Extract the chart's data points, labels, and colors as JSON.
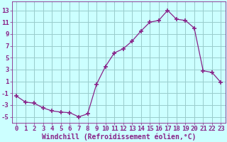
{
  "x": [
    0,
    1,
    2,
    3,
    4,
    5,
    6,
    7,
    8,
    9,
    10,
    11,
    12,
    13,
    14,
    15,
    16,
    17,
    18,
    19,
    20,
    21,
    22,
    23
  ],
  "y": [
    -1.5,
    -2.5,
    -2.7,
    -3.5,
    -4.0,
    -4.2,
    -4.3,
    -5.0,
    -4.5,
    0.5,
    3.5,
    5.8,
    6.5,
    7.8,
    9.5,
    11.0,
    11.3,
    13.0,
    11.5,
    11.3,
    10.0,
    2.8,
    2.5,
    0.8
  ],
  "line_color": "#882288",
  "marker": "+",
  "marker_size": 4,
  "marker_lw": 1.2,
  "bg_color": "#ccffff",
  "grid_color": "#99cccc",
  "xlabel": "Windchill (Refroidissement éolien,°C)",
  "xlabel_color": "#882288",
  "tick_color": "#882288",
  "spine_color": "#882288",
  "xlim": [
    -0.5,
    23.5
  ],
  "ylim": [
    -6,
    14.5
  ],
  "yticks": [
    -5,
    -3,
    -1,
    1,
    3,
    5,
    7,
    9,
    11,
    13
  ],
  "xticks": [
    0,
    1,
    2,
    3,
    4,
    5,
    6,
    7,
    8,
    9,
    10,
    11,
    12,
    13,
    14,
    15,
    16,
    17,
    18,
    19,
    20,
    21,
    22,
    23
  ],
  "tick_fontsize": 6.5,
  "xlabel_fontsize": 7
}
